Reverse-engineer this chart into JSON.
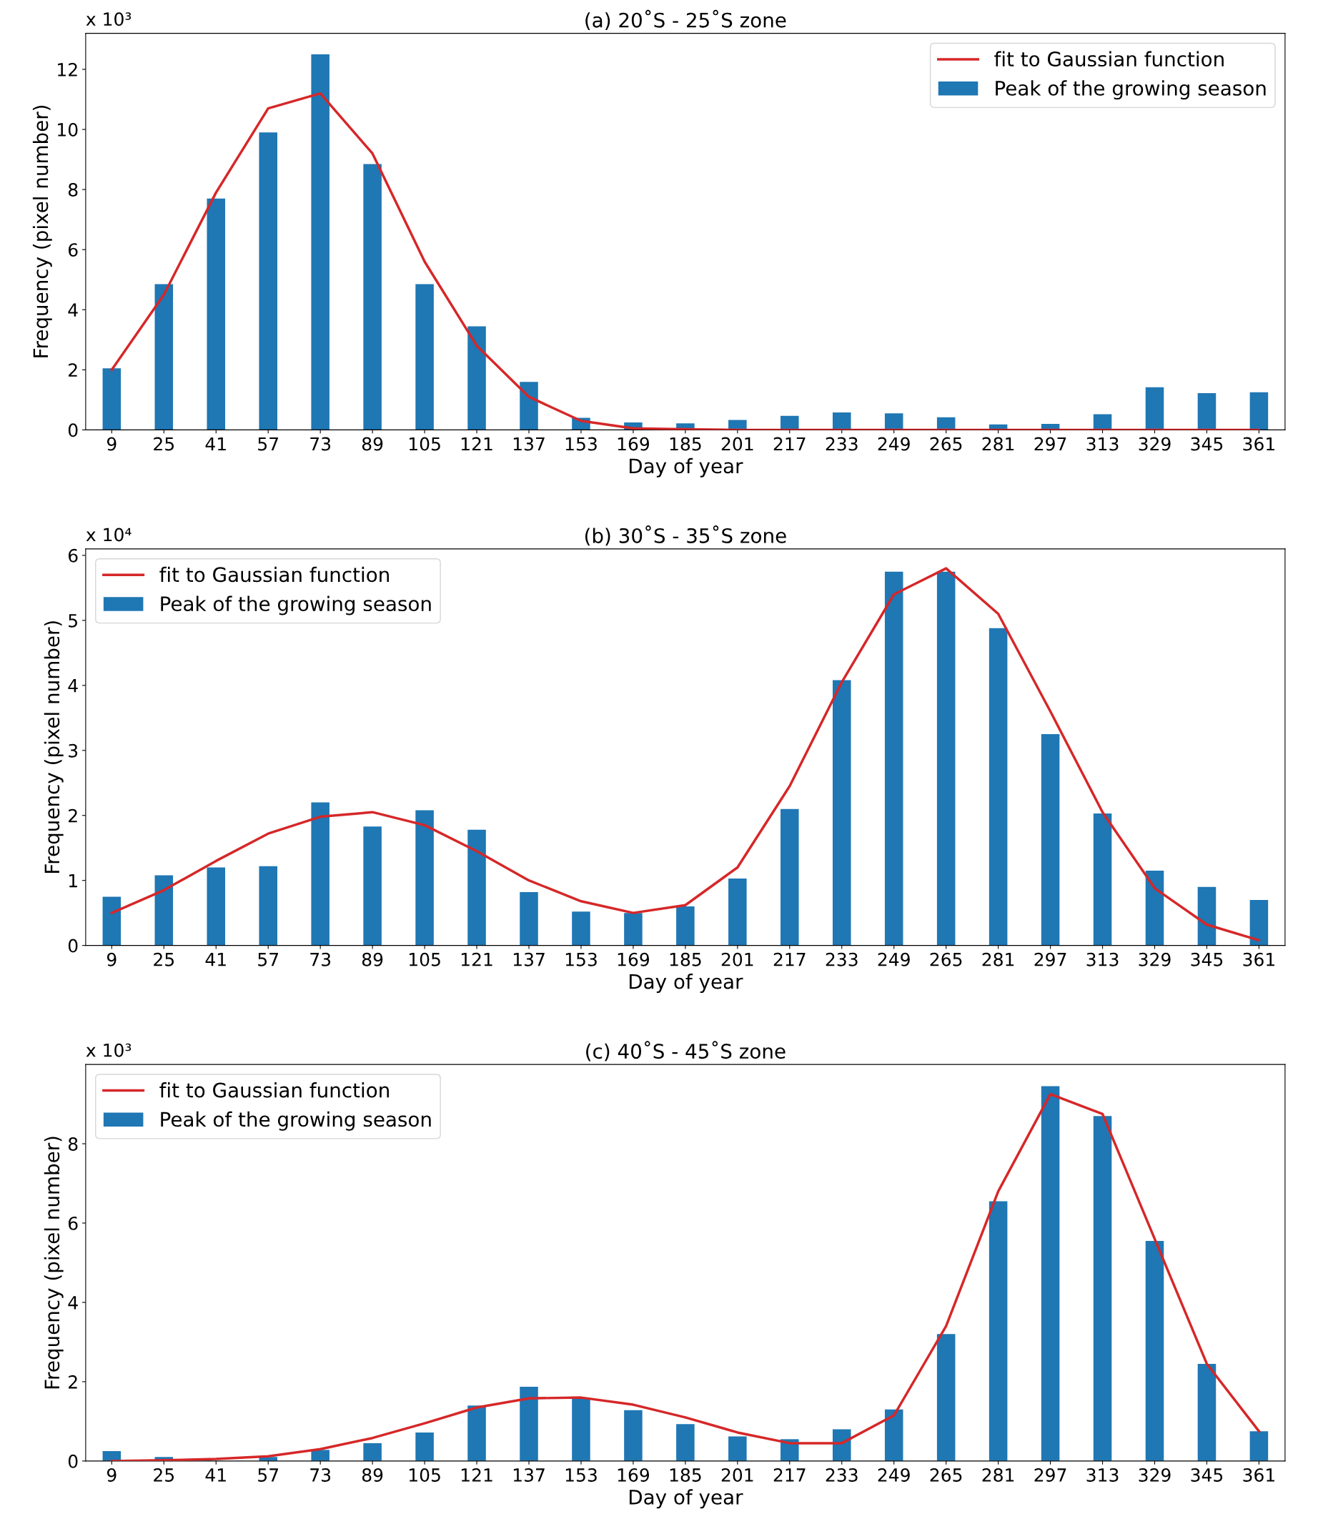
{
  "chart_data": [
    {
      "type": "bar",
      "title": "(a) 20˚S - 25˚S zone",
      "xlabel": "Day of year",
      "ylabel": "Frequency (pixel number)",
      "annotations": [
        "x 10³"
      ],
      "categories": [
        "9",
        "25",
        "41",
        "57",
        "73",
        "89",
        "105",
        "121",
        "137",
        "153",
        "169",
        "185",
        "201",
        "217",
        "233",
        "249",
        "265",
        "281",
        "297",
        "313",
        "329",
        "345",
        "361"
      ],
      "series": [
        {
          "name": "fit to Gaussian function",
          "type": "line",
          "color": "#d62728",
          "values": [
            2.0,
            4.5,
            7.9,
            10.7,
            11.2,
            9.2,
            5.6,
            2.8,
            1.1,
            0.3,
            0.05,
            0.02,
            0,
            0,
            0,
            0,
            0,
            0,
            0,
            0,
            0,
            0,
            0
          ]
        },
        {
          "name": "Peak of the growing season",
          "color": "#1f77b4",
          "values": [
            2.05,
            4.85,
            7.7,
            9.9,
            12.5,
            8.85,
            4.85,
            3.45,
            1.6,
            0.4,
            0.25,
            0.22,
            0.33,
            0.47,
            0.58,
            0.55,
            0.42,
            0.18,
            0.2,
            0.52,
            1.42,
            1.22,
            1.25
          ]
        }
      ],
      "ylim": [
        0,
        13.2
      ],
      "yticks": [
        0,
        2,
        4,
        6,
        8,
        10,
        12
      ],
      "legend": "top right",
      "grid": false
    },
    {
      "type": "bar",
      "title": "(b) 30˚S - 35˚S zone",
      "xlabel": "Day of year",
      "ylabel": "Frequency (pixel number)",
      "annotations": [
        "x 10⁴"
      ],
      "categories": [
        "9",
        "25",
        "41",
        "57",
        "73",
        "89",
        "105",
        "121",
        "137",
        "153",
        "169",
        "185",
        "201",
        "217",
        "233",
        "249",
        "265",
        "281",
        "297",
        "313",
        "329",
        "345",
        "361"
      ],
      "series": [
        {
          "name": "fit to Gaussian function",
          "type": "line",
          "color": "#d62728",
          "values": [
            0.5,
            0.85,
            1.3,
            1.72,
            1.98,
            2.05,
            1.85,
            1.45,
            1.0,
            0.68,
            0.5,
            0.62,
            1.2,
            2.45,
            4.05,
            5.4,
            5.8,
            5.1,
            3.6,
            2.05,
            0.88,
            0.32,
            0.08
          ]
        },
        {
          "name": "Peak of the growing season",
          "color": "#1f77b4",
          "values": [
            0.75,
            1.08,
            1.2,
            1.22,
            2.2,
            1.83,
            2.08,
            1.78,
            0.82,
            0.52,
            0.5,
            0.6,
            1.03,
            2.1,
            4.08,
            5.75,
            5.75,
            4.88,
            3.25,
            2.03,
            1.15,
            0.9,
            0.7
          ]
        }
      ],
      "ylim": [
        0,
        6.1
      ],
      "yticks": [
        0,
        1,
        2,
        3,
        4,
        5,
        6
      ],
      "legend": "top left",
      "grid": false
    },
    {
      "type": "bar",
      "title": "(c) 40˚S - 45˚S zone",
      "xlabel": "Day of year",
      "ylabel": "Frequency (pixel number)",
      "annotations": [
        "x 10³"
      ],
      "categories": [
        "9",
        "25",
        "41",
        "57",
        "73",
        "89",
        "105",
        "121",
        "137",
        "153",
        "169",
        "185",
        "201",
        "217",
        "233",
        "249",
        "265",
        "281",
        "297",
        "313",
        "329",
        "345",
        "361"
      ],
      "series": [
        {
          "name": "fit to Gaussian function",
          "type": "line",
          "color": "#d62728",
          "values": [
            0.0,
            0.02,
            0.05,
            0.12,
            0.3,
            0.58,
            0.95,
            1.35,
            1.58,
            1.6,
            1.42,
            1.1,
            0.72,
            0.45,
            0.45,
            1.15,
            3.4,
            6.8,
            9.25,
            8.75,
            5.6,
            2.45,
            0.75
          ]
        },
        {
          "name": "Peak of the growing season",
          "color": "#1f77b4",
          "values": [
            0.25,
            0.1,
            null,
            0.1,
            0.28,
            0.45,
            0.72,
            1.4,
            1.87,
            1.6,
            1.28,
            0.93,
            0.62,
            0.55,
            0.8,
            1.3,
            3.2,
            6.55,
            9.45,
            8.7,
            5.55,
            2.45,
            0.75
          ]
        }
      ],
      "ylim": [
        0,
        10
      ],
      "yticks": [
        0,
        2,
        4,
        6,
        8
      ],
      "legend": "top left",
      "grid": false
    }
  ]
}
